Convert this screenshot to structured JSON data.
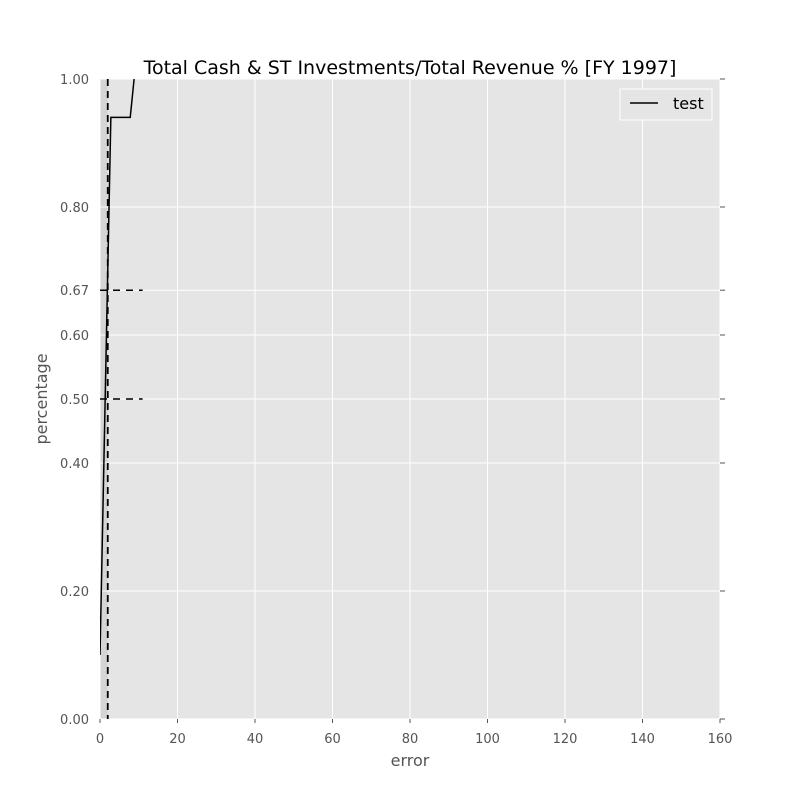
{
  "chart_data": {
    "type": "line",
    "title": "Total Cash & ST Investments/Total Revenue % [FY 1997]",
    "xlabel": "error",
    "ylabel": "percentage",
    "xlim": [
      0,
      160
    ],
    "ylim": [
      0,
      1
    ],
    "xticks": [
      0,
      20,
      40,
      60,
      80,
      100,
      120,
      140,
      160
    ],
    "xtick_labels": [
      "0",
      "20",
      "40",
      "60",
      "80",
      "100",
      "120",
      "140",
      "160"
    ],
    "yticks": [
      0.0,
      0.2,
      0.4,
      0.5,
      0.6,
      0.67,
      0.8,
      1.0
    ],
    "ytick_labels": [
      "0.00",
      "0.20",
      "0.40",
      "0.50",
      "0.60",
      "0.67",
      "0.80",
      "1.00"
    ],
    "grid": true,
    "legend": {
      "placement": "top-right"
    },
    "series": [
      {
        "name": "test",
        "color": "#000000",
        "style": "solid",
        "x": [
          0,
          2.8,
          7.8,
          8.8
        ],
        "y": [
          0.1,
          0.94,
          0.94,
          1.0
        ]
      }
    ],
    "reference_lines": [
      {
        "orientation": "vertical",
        "x": 2,
        "style": "dashed",
        "color": "#000000"
      },
      {
        "orientation": "horizontal",
        "y": 0.67,
        "x_range": [
          0,
          11
        ],
        "style": "dashed",
        "color": "#000000"
      },
      {
        "orientation": "horizontal",
        "y": 0.5,
        "x_range": [
          0,
          11
        ],
        "style": "dashed",
        "color": "#000000"
      }
    ],
    "shaded_band": {
      "x_range": [
        0,
        2
      ],
      "color": "#d5d5d5"
    },
    "colors": {
      "plot_background": "#e5e5e5",
      "grid": "#ffffff",
      "tick_text": "#555555"
    }
  }
}
